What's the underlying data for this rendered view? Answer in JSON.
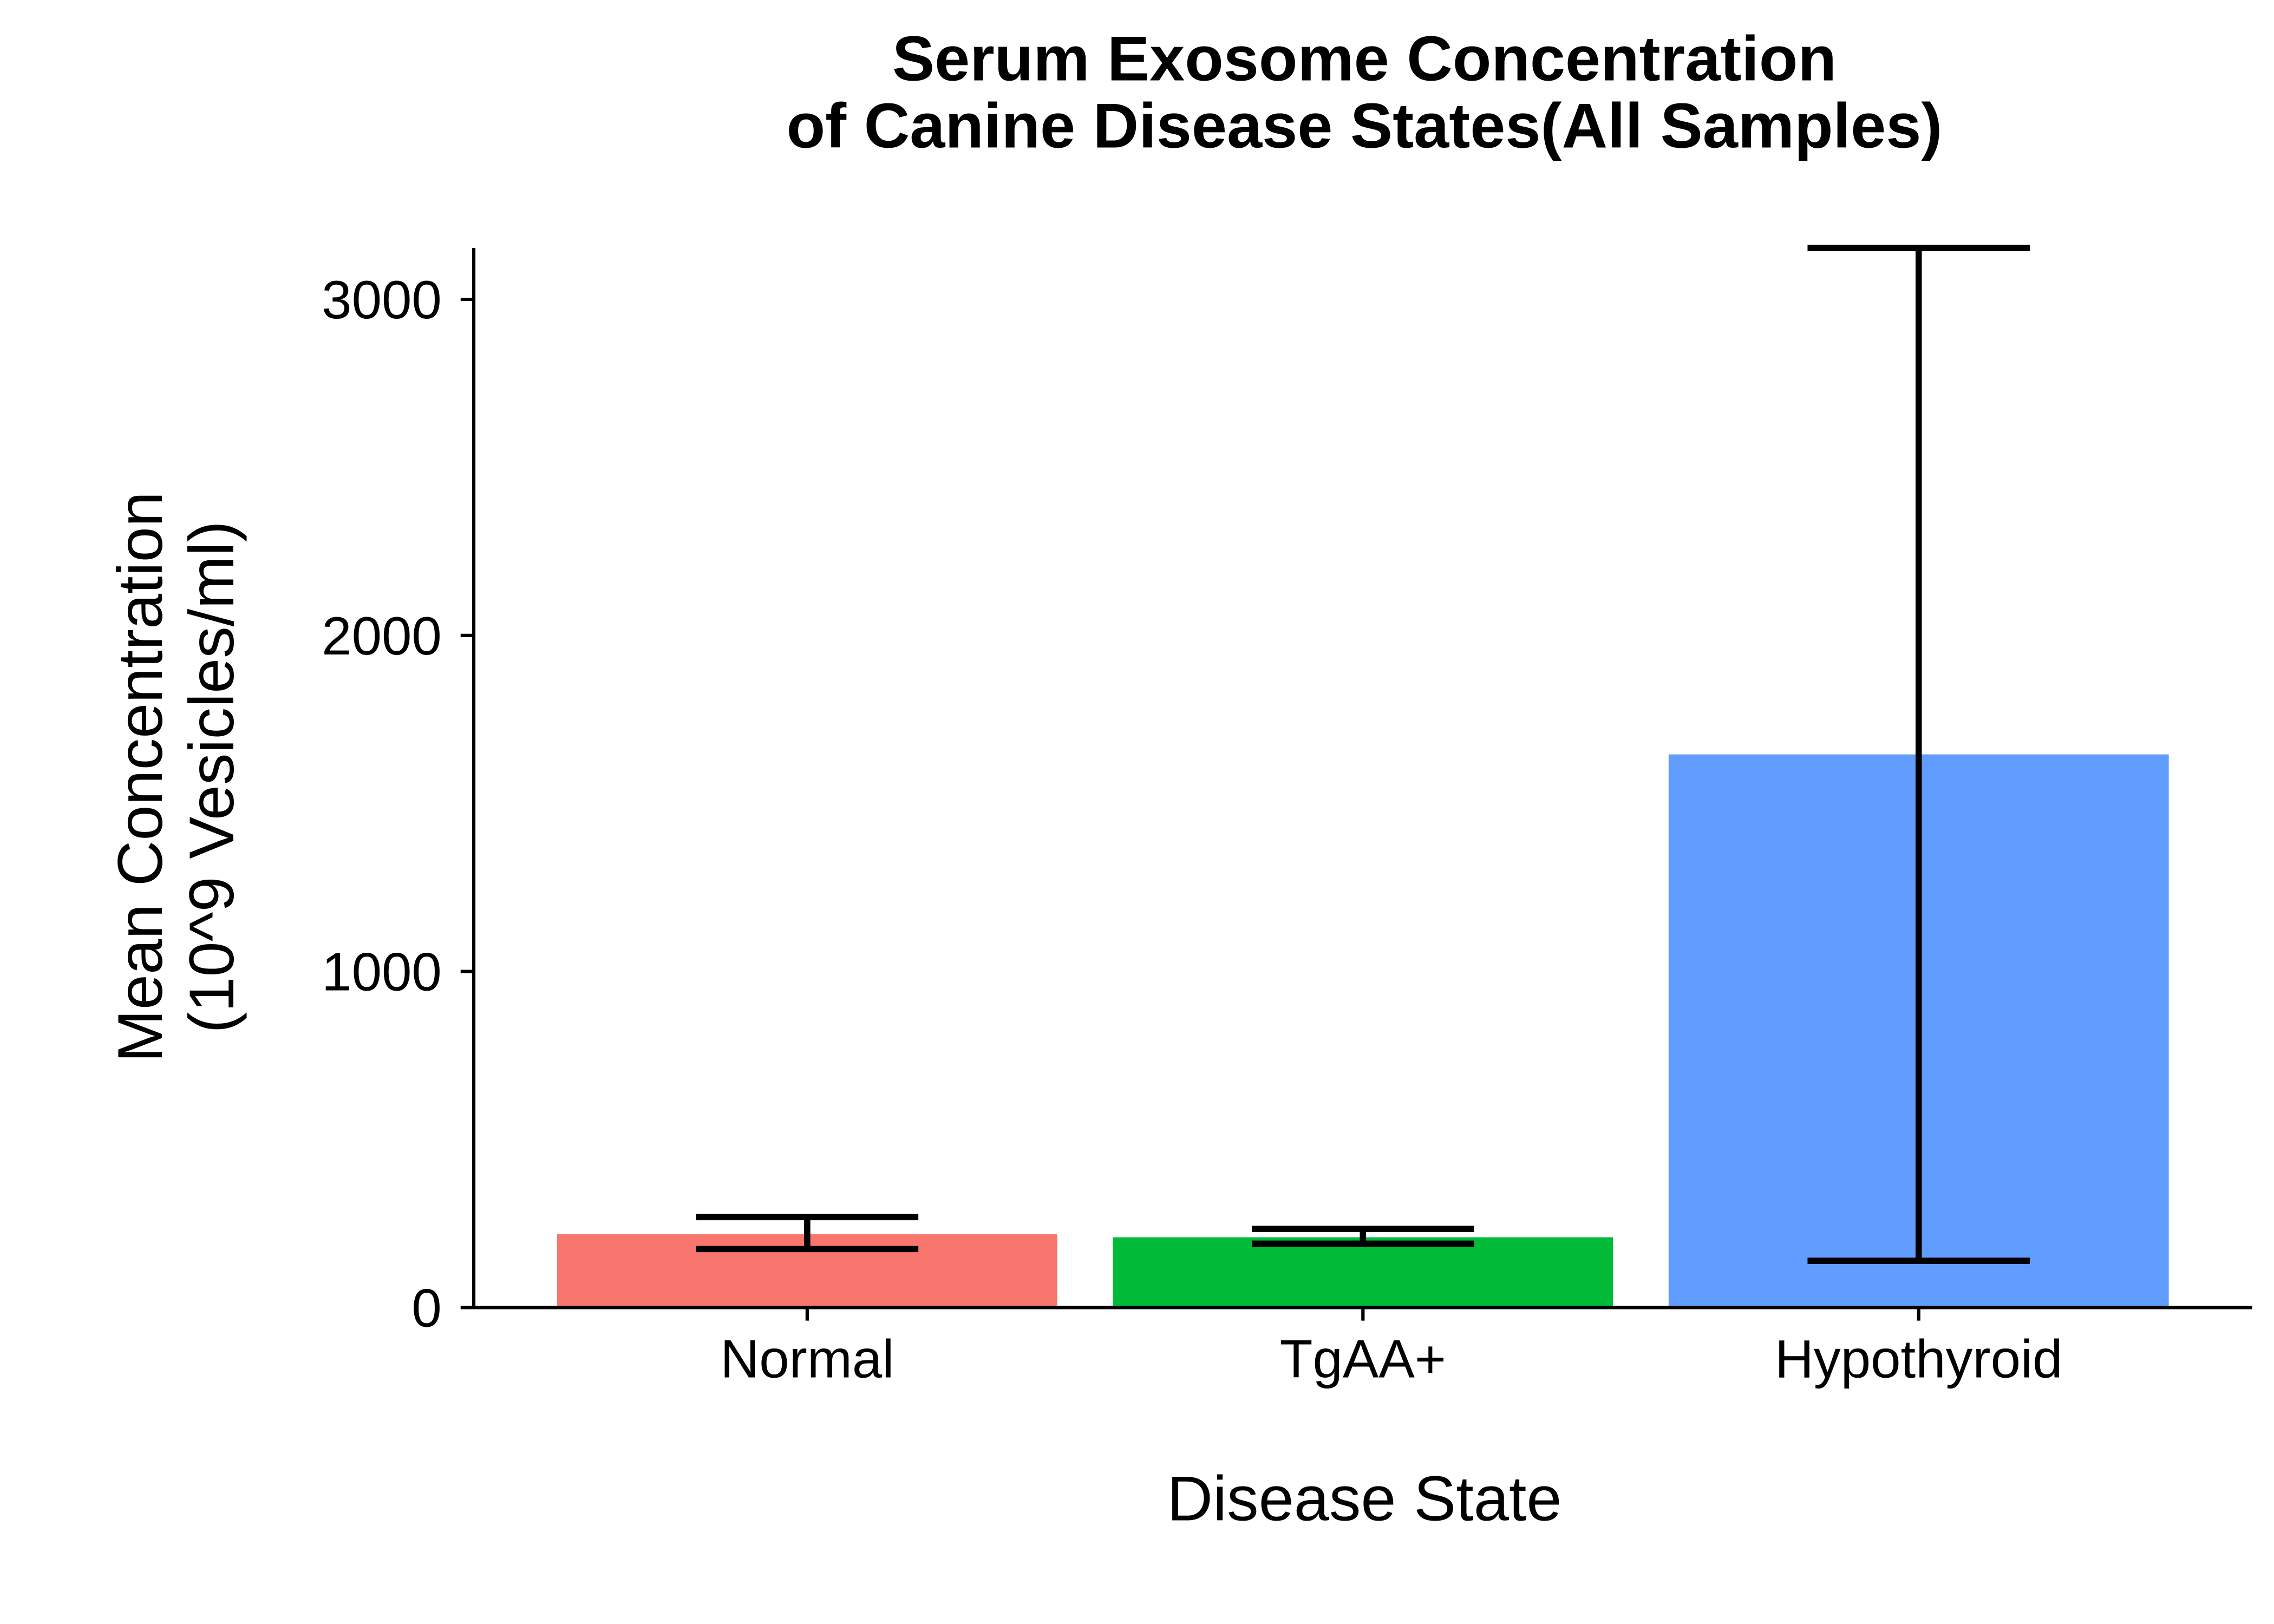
{
  "chart_data": {
    "type": "bar",
    "title_lines": [
      "Serum Exosome Concentration",
      "of Canine Disease States(All Samples)"
    ],
    "xlabel": "Disease State",
    "ylabel_lines": [
      "Mean Concentration",
      "(10^9 Vesicles/ml)"
    ],
    "categories": [
      "Normal",
      "TgAA+",
      "Hypothyroid"
    ],
    "values": [
      218,
      209,
      1646
    ],
    "error_lower": [
      174,
      190,
      139
    ],
    "error_upper": [
      269,
      234,
      3153
    ],
    "bar_colors": [
      "#F8766D",
      "#00BA38",
      "#619CFF"
    ],
    "error_bar_color": "#000000",
    "ylim": [
      0,
      3153
    ],
    "yticks": [
      0,
      1000,
      2000,
      3000
    ],
    "grid": false,
    "legend": "none"
  }
}
